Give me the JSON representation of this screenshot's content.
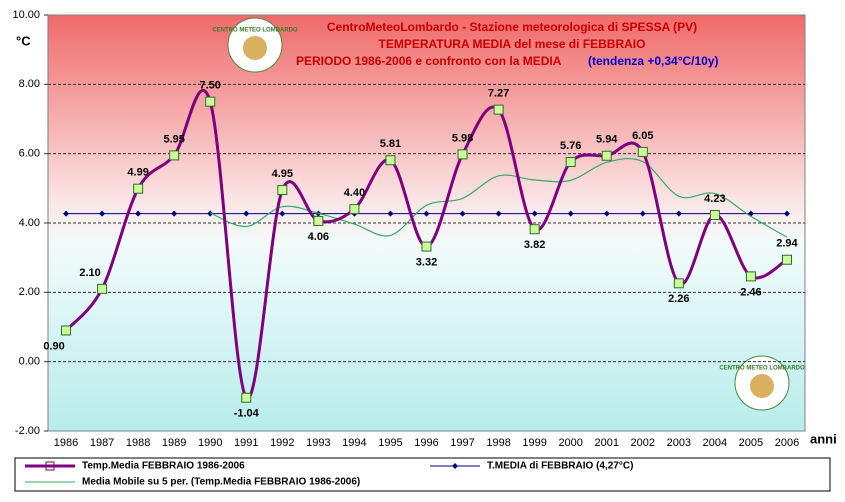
{
  "chart_data": {
    "type": "line",
    "title": [
      "CentroMeteoLombardo - Stazione meteorologica di SPESSA (PV)",
      "TEMPERATURA MEDIA del mese di FEBBRAIO",
      "PERIODO 1986-2006 e confronto con la MEDIA"
    ],
    "subtitle": "(tendenza +0,34°C/10y)",
    "y_axis_label": "°C",
    "x_axis_label": "anni",
    "logo_text": "CENTRO METEO LOMBARDO",
    "categories": [
      "1986",
      "1987",
      "1988",
      "1989",
      "1990",
      "1991",
      "1992",
      "1993",
      "1994",
      "1995",
      "1996",
      "1997",
      "1998",
      "1999",
      "2000",
      "2001",
      "2002",
      "2003",
      "2004",
      "2005",
      "2006"
    ],
    "series": [
      {
        "name": "Temp.Media FEBBRAIO 1986-2006",
        "color": "#800080",
        "marker_color": "#ccff99",
        "values": [
          0.9,
          2.1,
          4.99,
          5.95,
          7.5,
          -1.04,
          4.95,
          4.06,
          4.4,
          5.81,
          3.32,
          5.98,
          7.27,
          3.82,
          5.76,
          5.94,
          6.05,
          2.26,
          4.23,
          2.46,
          2.94
        ],
        "value_labels": [
          "0.90",
          "2.10",
          "4.99",
          "5.95",
          "7.50",
          "-1.04",
          "4.95",
          "4.06",
          "4.40",
          "5.81",
          "3.32",
          "5.98",
          "7.27",
          "3.82",
          "5.76",
          "5.94",
          "6.05",
          "2.26",
          "4.23",
          "2.46",
          "2.94"
        ]
      },
      {
        "name": "T.MEDIA di FEBBRAIO (4,27°C)",
        "color": "#000080",
        "values": [
          4.27,
          4.27,
          4.27,
          4.27,
          4.27,
          4.27,
          4.27,
          4.27,
          4.27,
          4.27,
          4.27,
          4.27,
          4.27,
          4.27,
          4.27,
          4.27,
          4.27,
          4.27,
          4.27,
          4.27,
          4.27
        ]
      },
      {
        "name": "Media Mobile su 5 per. (Temp.Media FEBBRAIO 1986-2006)",
        "color": "#33aa66",
        "values": [
          null,
          null,
          null,
          null,
          4.29,
          3.9,
          4.47,
          4.28,
          3.97,
          3.64,
          4.51,
          4.71,
          5.36,
          5.24,
          5.23,
          5.75,
          5.77,
          4.77,
          4.85,
          4.19,
          3.59
        ]
      }
    ],
    "ylim": [
      -2,
      10
    ],
    "yticks": [
      {
        "value": -2,
        "label": "-2.00"
      },
      {
        "value": 0,
        "label": "0.00"
      },
      {
        "value": 2,
        "label": "2.00"
      },
      {
        "value": 4,
        "label": "4.00"
      },
      {
        "value": 6,
        "label": "6.00"
      },
      {
        "value": 8,
        "label": "8.00"
      },
      {
        "value": 10,
        "label": "10.00"
      }
    ],
    "grid": true
  }
}
